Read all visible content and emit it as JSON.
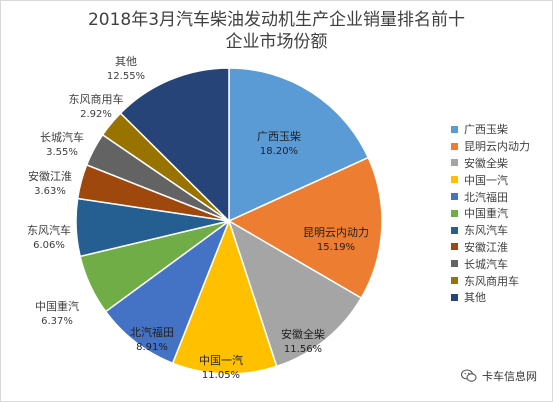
{
  "chart_data": {
    "type": "pie",
    "title": "2018年3月汽车柴油发动机生产企业销量排名前十",
    "subtitle": "企业市场份额",
    "legend_position": "right",
    "slices": [
      {
        "label": "广西玉柴",
        "value": 18.2,
        "value_label": "18.20%",
        "color": "#5b9bd5"
      },
      {
        "label": "昆明云内动力",
        "value": 15.19,
        "value_label": "15.19%",
        "color": "#ed7d31"
      },
      {
        "label": "安徽全柴",
        "value": 11.56,
        "value_label": "11.56%",
        "color": "#a5a5a5"
      },
      {
        "label": "中国一汽",
        "value": 11.05,
        "value_label": "11.05%",
        "color": "#ffc000"
      },
      {
        "label": "北汽福田",
        "value": 8.91,
        "value_label": "8.91%",
        "color": "#4472c4"
      },
      {
        "label": "中国重汽",
        "value": 6.37,
        "value_label": "6.37%",
        "color": "#70ad47"
      },
      {
        "label": "东风汽车",
        "value": 6.06,
        "value_label": "6.06%",
        "color": "#255e91"
      },
      {
        "label": "安徽江淮",
        "value": 3.63,
        "value_label": "3.63%",
        "color": "#9e480e"
      },
      {
        "label": "长城汽车",
        "value": 3.55,
        "value_label": "3.55%",
        "color": "#636363"
      },
      {
        "label": "东风商用车",
        "value": 2.92,
        "value_label": "2.92%",
        "color": "#997300"
      },
      {
        "label": "其他",
        "value": 12.55,
        "value_label": "12.55%",
        "color": "#264478"
      }
    ]
  },
  "watermark": {
    "text": "卡车信息网",
    "icon": "wechat-icon"
  }
}
